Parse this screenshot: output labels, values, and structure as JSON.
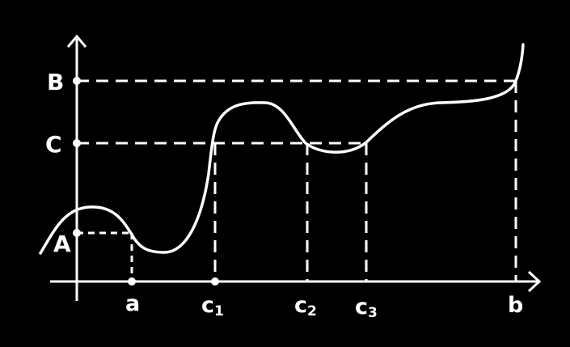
{
  "diagram": {
    "colors": {
      "background": "#000000",
      "stroke": "#ffffff"
    },
    "y_labels": {
      "B": "B",
      "C": "C",
      "A": "A"
    },
    "x_labels": {
      "a": "a",
      "c1_base": "c",
      "c1_sub": "1",
      "c2_base": "c",
      "c2_sub": "2",
      "c3_base": "c",
      "c3_sub": "3",
      "b": "b"
    }
  }
}
